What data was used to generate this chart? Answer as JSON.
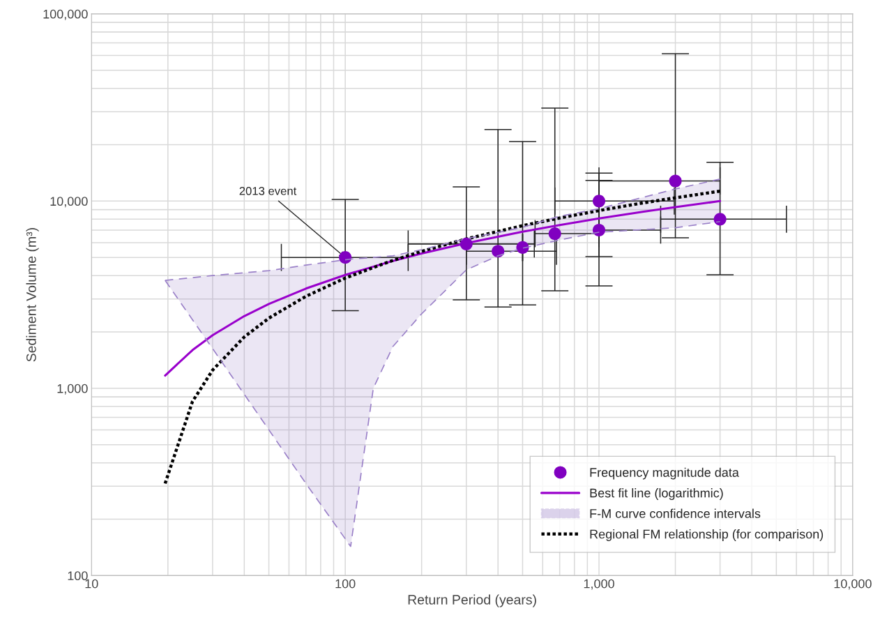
{
  "chart_data": {
    "type": "scatter",
    "xlabel": "Return Period (years)",
    "ylabel": "Sediment Volume (m³)",
    "log": "xy",
    "grid": true,
    "legend": "bottom right",
    "xlim": [
      10,
      10000
    ],
    "ylim": [
      100,
      100000
    ],
    "xticks": [
      {
        "value": 10,
        "label": "10"
      },
      {
        "value": 100,
        "label": "100"
      },
      {
        "value": 1000,
        "label": "1,000"
      },
      {
        "value": 10000,
        "label": "10,000"
      }
    ],
    "yticks": [
      {
        "value": 100,
        "label": "100"
      },
      {
        "value": 1000,
        "label": "1,000"
      },
      {
        "value": 10000,
        "label": "10,000"
      },
      {
        "value": 100000,
        "label": "100,000"
      }
    ],
    "annotations": [
      {
        "text": "2013 event",
        "x": 100,
        "y": 5000
      }
    ],
    "series": [
      {
        "name": "Frequency magnitude data",
        "marker": "circle",
        "color": "#8000c0",
        "x": [
          100,
          300,
          400,
          500,
          670,
          1000,
          1000,
          2000,
          3000
        ],
        "values": [
          5000,
          5900,
          5400,
          5650,
          6700,
          10000,
          7000,
          12800,
          8000
        ],
        "errors": [
          [
            2600,
            10200
          ],
          [
            2970,
            11900
          ],
          [
            2720,
            24100
          ],
          [
            2790,
            20800
          ],
          [
            3320,
            31400
          ],
          [
            5050,
            14100
          ],
          [
            3520,
            12900
          ],
          [
            6370,
            61300
          ],
          [
            4040,
            16100
          ]
        ],
        "xerrors": [
          [
            56,
            177
          ],
          [
            177,
            556
          ],
          [
            300,
            680
          ],
          null,
          [
            560,
            1000
          ],
          [
            670,
            1980
          ],
          [
            1000,
            1750
          ],
          [
            1000,
            3000
          ],
          [
            1750,
            5480
          ]
        ]
      },
      {
        "name": "Best fit line (logarithmic)",
        "type": "line",
        "line_style": "solid",
        "color": "#9900cc",
        "x": [
          19.5,
          25,
          30,
          40,
          50,
          70,
          100,
          150,
          200,
          300,
          500,
          700,
          1000,
          1500,
          2000,
          3000
        ],
        "values": [
          1170,
          1600,
          1920,
          2430,
          2820,
          3410,
          4030,
          4740,
          5250,
          5960,
          6860,
          7440,
          8070,
          8780,
          9280,
          10000
        ]
      },
      {
        "name": "F-M curve confidence intervals",
        "type": "line",
        "line_style": "dashed",
        "color": "#9a80c8",
        "x": [
          19.5,
          30,
          50,
          70,
          105,
          129,
          154,
          200,
          300,
          400,
          500,
          700,
          1000,
          2000,
          3000
        ],
        "values": [
          3770,
          4000,
          4250,
          4550,
          4900,
          5000,
          5100,
          5500,
          6300,
          6800,
          7250,
          8300,
          9100,
          11600,
          13100
        ],
        "lower": [
          3770,
          1630,
          600,
          310,
          143,
          1000,
          1670,
          2500,
          4290,
          5100,
          5600,
          6200,
          6820,
          7200,
          7770
        ],
        "upper": [
          3770,
          4000,
          4250,
          4550,
          4900,
          5000,
          5100,
          5500,
          6300,
          6800,
          7250,
          8300,
          9100,
          11600,
          13100
        ]
      },
      {
        "type": "line",
        "line_style": "dashed",
        "color": "#9a80c8",
        "x": [
          19.5,
          30,
          50,
          70,
          105,
          129,
          154,
          200,
          300,
          400,
          500,
          700,
          1000,
          2000,
          3000
        ],
        "values": [
          3770,
          1630,
          600,
          310,
          143,
          1000,
          1670,
          2500,
          4290,
          5100,
          5600,
          6200,
          6820,
          7200,
          7770
        ]
      },
      {
        "name": "Regional FM relationship (for comparison)",
        "type": "line",
        "line_style": "dashed",
        "color": "#000000",
        "x": [
          19.5,
          25,
          30,
          40,
          50,
          70,
          100,
          150,
          200,
          300,
          500,
          700,
          1000,
          1500,
          2000,
          3000
        ],
        "values": [
          310,
          850,
          1250,
          1880,
          2370,
          3100,
          3880,
          4760,
          5390,
          6280,
          7390,
          8120,
          8900,
          9790,
          10410,
          11300
        ]
      }
    ]
  }
}
